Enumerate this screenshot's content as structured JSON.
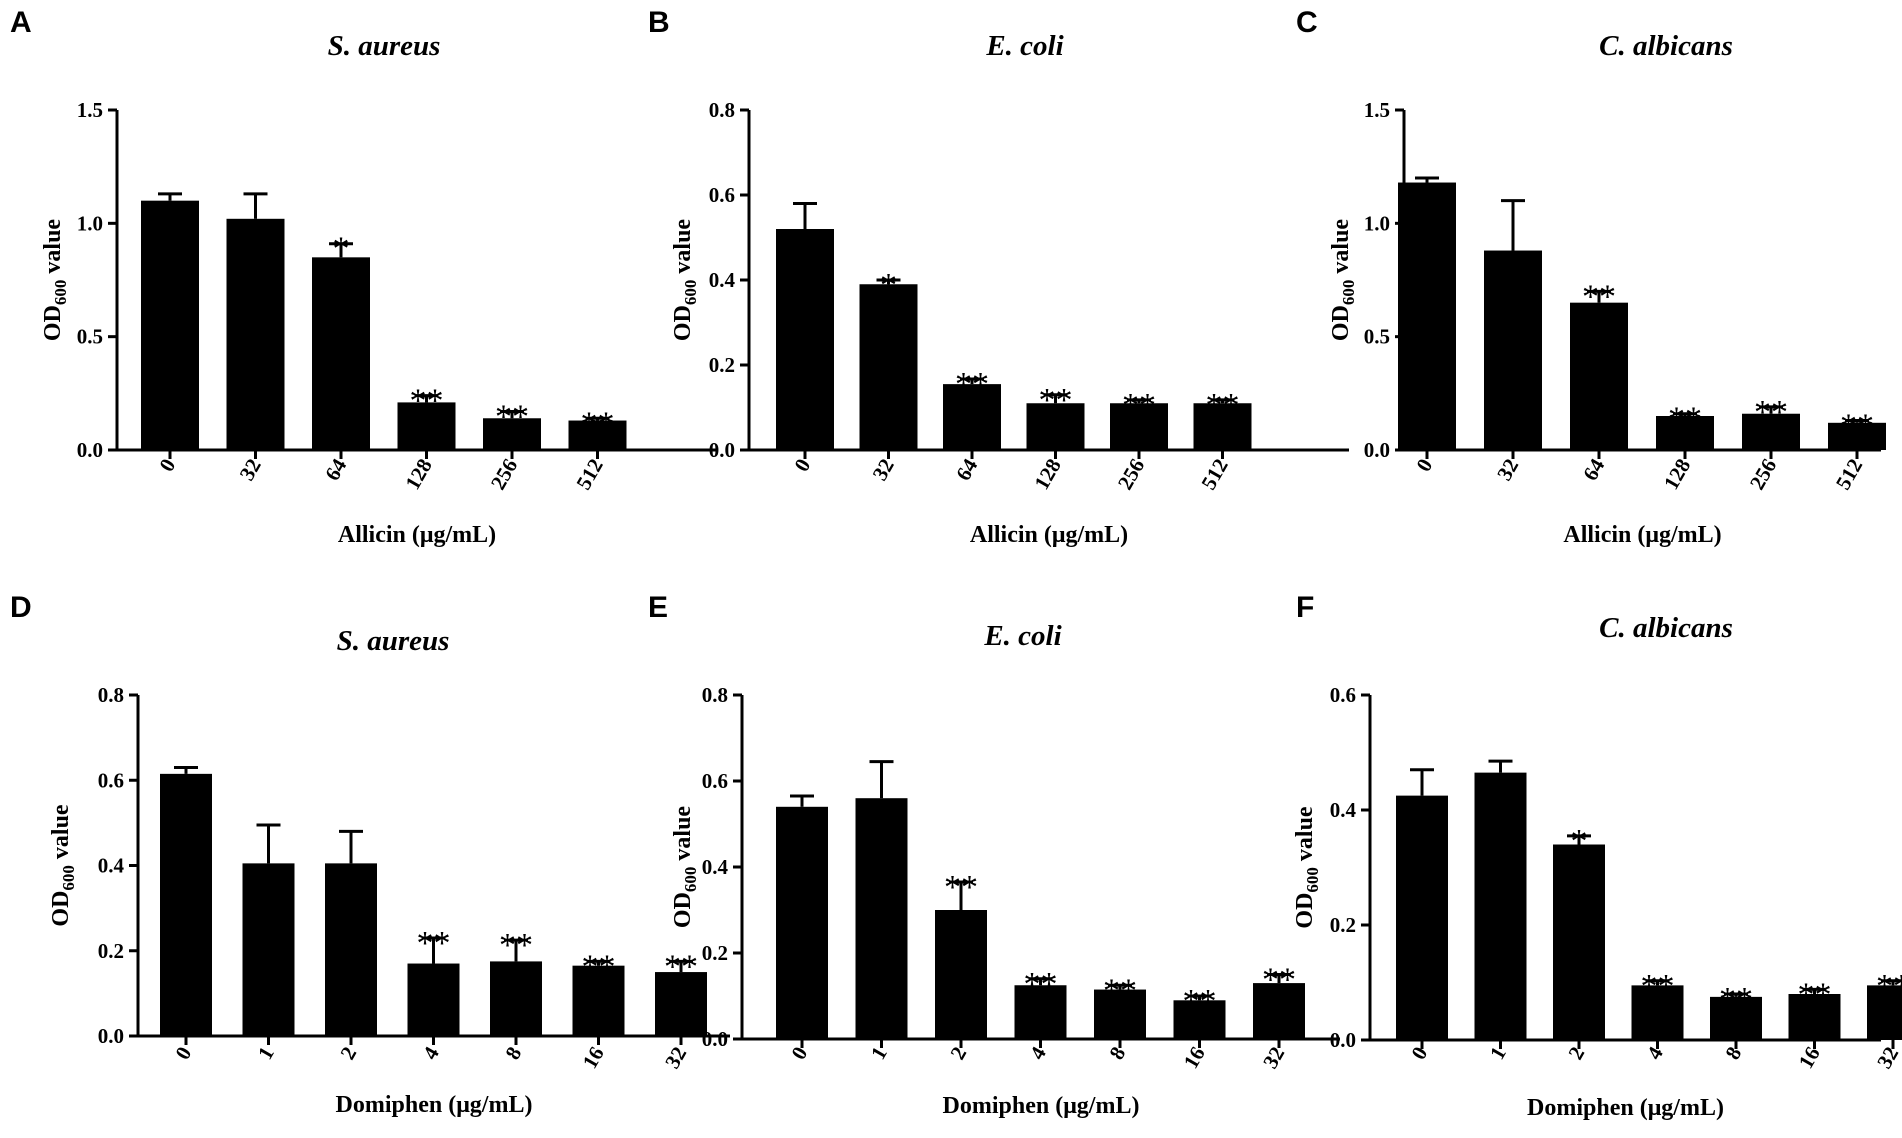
{
  "chart_data": [
    {
      "id": "A",
      "panel_label": "A",
      "type": "bar",
      "title": "S. aureus",
      "xlabel": "Allicin (μg/mL)",
      "ylabel_main": "OD",
      "ylabel_sub": "600",
      "ylabel_rest": " value",
      "ylim": [
        0,
        1.5
      ],
      "yticks": [
        "0.0",
        "0.5",
        "1.0",
        "1.5"
      ],
      "categories": [
        "0",
        "32",
        "64",
        "128",
        "256",
        "512"
      ],
      "values": [
        1.1,
        1.02,
        0.85,
        0.21,
        0.14,
        0.13
      ],
      "errors": [
        0.03,
        0.11,
        0.06,
        0.03,
        0.03,
        0.01
      ],
      "significance": [
        "",
        "",
        "*",
        "**",
        "**",
        "**"
      ],
      "bar_color": "#000000"
    },
    {
      "id": "B",
      "panel_label": "B",
      "type": "bar",
      "title": "E. coli",
      "xlabel": "Allicin (μg/mL)",
      "ylabel_main": "OD",
      "ylabel_sub": "600",
      "ylabel_rest": " value",
      "ylim": [
        0,
        0.8
      ],
      "yticks": [
        "0.0",
        "0.2",
        "0.4",
        "0.6",
        "0.8"
      ],
      "categories": [
        "0",
        "32",
        "64",
        "128",
        "256",
        "512"
      ],
      "values": [
        0.52,
        0.39,
        0.155,
        0.11,
        0.11,
        0.11
      ],
      "errors": [
        0.06,
        0.01,
        0.012,
        0.02,
        0.008,
        0.008
      ],
      "significance": [
        "",
        "*",
        "**",
        "**",
        "**",
        "**"
      ],
      "bar_color": "#000000"
    },
    {
      "id": "C",
      "panel_label": "C",
      "type": "bar",
      "title": "C. albicans",
      "xlabel": "Allicin (μg/mL)",
      "ylabel_main": "OD",
      "ylabel_sub": "600",
      "ylabel_rest": " value",
      "ylim": [
        0,
        1.5
      ],
      "yticks": [
        "0.0",
        "0.5",
        "1.0",
        "1.5"
      ],
      "categories": [
        "0",
        "32",
        "64",
        "128",
        "256",
        "512"
      ],
      "values": [
        1.18,
        0.88,
        0.65,
        0.15,
        0.16,
        0.12
      ],
      "errors": [
        0.02,
        0.22,
        0.05,
        0.01,
        0.03,
        0.01
      ],
      "significance": [
        "",
        "",
        "**",
        "**",
        "**",
        "**"
      ],
      "bar_color": "#000000"
    },
    {
      "id": "D",
      "panel_label": "D",
      "type": "bar",
      "title": "S. aureus",
      "xlabel": "Domiphen (μg/mL)",
      "ylabel_main": "OD",
      "ylabel_sub": "600",
      "ylabel_rest": " value",
      "ylim": [
        0,
        0.8
      ],
      "yticks": [
        "0.0",
        "0.2",
        "0.4",
        "0.6",
        "0.8"
      ],
      "categories": [
        "0",
        "1",
        "2",
        "4",
        "8",
        "16",
        "32"
      ],
      "values": [
        0.615,
        0.405,
        0.405,
        0.17,
        0.175,
        0.165,
        0.15
      ],
      "errors": [
        0.015,
        0.09,
        0.075,
        0.06,
        0.05,
        0.01,
        0.025
      ],
      "significance": [
        "",
        "",
        "",
        "**",
        "**",
        "**",
        "**"
      ],
      "bar_color": "#000000"
    },
    {
      "id": "E",
      "panel_label": "E",
      "type": "bar",
      "title": "E. coli",
      "xlabel": "Domiphen (μg/mL)",
      "ylabel_main": "OD",
      "ylabel_sub": "600",
      "ylabel_rest": " value",
      "ylim": [
        0,
        0.8
      ],
      "yticks": [
        "0.0",
        "0.2",
        "0.4",
        "0.6",
        "0.8"
      ],
      "categories": [
        "0",
        "1",
        "2",
        "4",
        "8",
        "16",
        "32"
      ],
      "values": [
        0.54,
        0.56,
        0.3,
        0.125,
        0.115,
        0.09,
        0.13
      ],
      "errors": [
        0.025,
        0.085,
        0.065,
        0.015,
        0.01,
        0.01,
        0.02
      ],
      "significance": [
        "",
        "",
        "**",
        "**",
        "**",
        "**",
        "**"
      ],
      "bar_color": "#000000"
    },
    {
      "id": "F",
      "panel_label": "F",
      "type": "bar",
      "title": "C. albicans",
      "xlabel": "Domiphen (μg/mL)",
      "ylabel_main": "OD",
      "ylabel_sub": "600",
      "ylabel_rest": " value",
      "ylim": [
        0,
        0.6
      ],
      "yticks": [
        "0.0",
        "0.2",
        "0.4",
        "0.6"
      ],
      "categories": [
        "0",
        "1",
        "2",
        "4",
        "8",
        "16",
        "32"
      ],
      "values": [
        0.425,
        0.465,
        0.34,
        0.095,
        0.075,
        0.08,
        0.095
      ],
      "errors": [
        0.045,
        0.02,
        0.015,
        0.008,
        0.005,
        0.008,
        0.008
      ],
      "significance": [
        "",
        "",
        "*",
        "**",
        "**",
        "**",
        "**"
      ],
      "bar_color": "#000000"
    }
  ]
}
